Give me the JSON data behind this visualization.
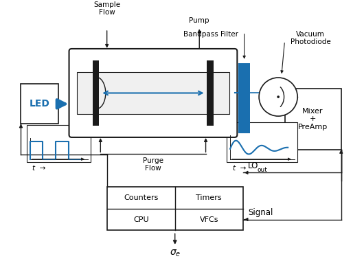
{
  "bg_color": "#ffffff",
  "blue": "#1a6faf",
  "black": "#1a1a1a",
  "led_label": "LED",
  "mixer_label": "Mixer\n+\nPreAmp",
  "sample_flow": "Sample\nFlow",
  "pump": "Pump",
  "bandpass_filter": "Bandpass Filter",
  "vacuum_photodiode": "Vacuum\nPhotodiode",
  "purge_flow": "Purge\nFlow",
  "counters": "Counters",
  "timers": "Timers",
  "cpu": "CPU",
  "vfcs": "VFCs",
  "lo_text": "LO",
  "lo_sub": "out",
  "signal_text": "Signal",
  "t_label": "t",
  "sigma_label": "$\\sigma_e$",
  "figw": 5.3,
  "figh": 3.8,
  "dpi": 100
}
